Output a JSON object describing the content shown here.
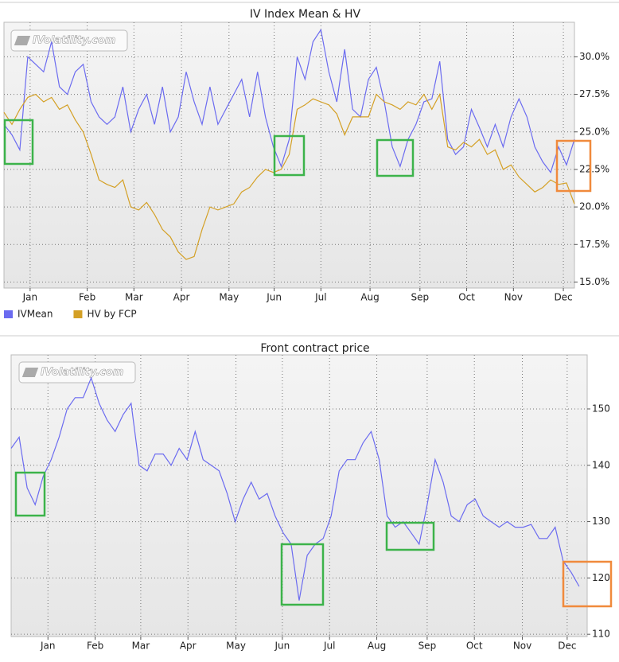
{
  "chart_data": [
    {
      "type": "line",
      "title": "IV Index Mean & HV",
      "watermark": "IVolatility.com",
      "x": [
        0,
        1,
        2,
        3,
        4,
        5,
        6,
        7,
        8,
        9,
        10,
        11,
        12,
        13,
        14,
        15,
        16,
        17,
        18,
        19,
        20,
        21,
        22,
        23,
        24,
        25,
        26,
        27,
        28,
        29,
        30,
        31,
        32,
        33,
        34,
        35,
        36,
        37,
        38,
        39,
        40,
        41,
        42,
        43,
        44,
        45,
        46,
        47,
        48,
        49,
        50,
        51,
        52,
        53,
        54,
        55,
        56,
        57,
        58,
        59,
        60,
        61,
        62,
        63,
        64,
        65,
        66,
        67,
        68,
        69,
        70,
        71,
        72
      ],
      "xlim": [
        0,
        72
      ],
      "xticks": [
        {
          "value": 3.3,
          "label": "Jan"
        },
        {
          "value": 10.5,
          "label": "Feb"
        },
        {
          "value": 16.4,
          "label": "Mar"
        },
        {
          "value": 22.4,
          "label": "Apr"
        },
        {
          "value": 28.4,
          "label": "May"
        },
        {
          "value": 34.1,
          "label": "Jun"
        },
        {
          "value": 40,
          "label": "Jul"
        },
        {
          "value": 46.2,
          "label": "Aug"
        },
        {
          "value": 52.5,
          "label": "Sep"
        },
        {
          "value": 58.4,
          "label": "Oct"
        },
        {
          "value": 64.3,
          "label": "Nov"
        },
        {
          "value": 70.6,
          "label": "Dec"
        }
      ],
      "ylim": [
        14.6,
        32.3
      ],
      "yticks": [
        {
          "value": 15,
          "label": "15.0%"
        },
        {
          "value": 17.5,
          "label": "17.5%"
        },
        {
          "value": 20,
          "label": "20.0%"
        },
        {
          "value": 22.5,
          "label": "22.5%"
        },
        {
          "value": 25,
          "label": "25.0%"
        },
        {
          "value": 27.5,
          "label": "27.5%"
        },
        {
          "value": 30,
          "label": "30.0%"
        }
      ],
      "grid": true,
      "legend": "bottom-left",
      "series": [
        {
          "name": "IVMean",
          "color": "#6b6bf0",
          "values": [
            25.5,
            24.8,
            23.8,
            30,
            29.5,
            29,
            31,
            28,
            27.5,
            29,
            29.5,
            27,
            26,
            25.5,
            26,
            28,
            25,
            26.5,
            27.5,
            25.5,
            28,
            25,
            26,
            29,
            27,
            25.5,
            28,
            25.5,
            26.5,
            27.5,
            28.5,
            26,
            29,
            26,
            24,
            22.7,
            24.5,
            30,
            28.5,
            31,
            31.8,
            29,
            27,
            30.5,
            26.5,
            26,
            28.5,
            29.3,
            27,
            24,
            22.7,
            24.5,
            25.5,
            27,
            27.2,
            29.7,
            24.5,
            23.5,
            24,
            26.5,
            25.3,
            24,
            25.5,
            24,
            26,
            27.2,
            26,
            24,
            23,
            22.3,
            24,
            22.8,
            24.5
          ]
        },
        {
          "name": "HV by FCP",
          "color": "#d4a025",
          "values": [
            26.3,
            25.5,
            26.5,
            27.3,
            27.5,
            27,
            27.3,
            26.5,
            26.8,
            25.8,
            25,
            23.5,
            21.8,
            21.5,
            21.3,
            21.8,
            20,
            19.8,
            20.3,
            19.5,
            18.5,
            18,
            17,
            16.5,
            16.7,
            18.5,
            20,
            19.8,
            20,
            20.2,
            21,
            21.3,
            22,
            22.5,
            22.3,
            22.5,
            23.5,
            26.5,
            26.8,
            27.2,
            27,
            26.8,
            26.2,
            24.8,
            26,
            26,
            26,
            27.5,
            27,
            26.8,
            26.5,
            27,
            26.8,
            27.5,
            26.5,
            27.5,
            24,
            23.8,
            24.3,
            24,
            24.5,
            23.5,
            23.8,
            22.5,
            22.8,
            22,
            21.5,
            21,
            21.3,
            21.8,
            21.5,
            21.6,
            20.2
          ]
        }
      ]
    },
    {
      "type": "line",
      "title": "Front contract price",
      "watermark": "IVolatility.com",
      "x": [
        0,
        1,
        2,
        3,
        4,
        5,
        6,
        7,
        8,
        9,
        10,
        11,
        12,
        13,
        14,
        15,
        16,
        17,
        18,
        19,
        20,
        21,
        22,
        23,
        24,
        25,
        26,
        27,
        28,
        29,
        30,
        31,
        32,
        33,
        34,
        35,
        36,
        37,
        38,
        39,
        40,
        41,
        42,
        43,
        44,
        45,
        46,
        47,
        48,
        49,
        50,
        51,
        52,
        53,
        54,
        55,
        56,
        57,
        58,
        59,
        60,
        61,
        62,
        63,
        64,
        65,
        66,
        67,
        68,
        69,
        70,
        71
      ],
      "xlim": [
        0,
        72
      ],
      "xticks": [
        {
          "value": 4.6,
          "label": "Jan"
        },
        {
          "value": 10.5,
          "label": "Feb"
        },
        {
          "value": 16.2,
          "label": "Mar"
        },
        {
          "value": 22.1,
          "label": "Apr"
        },
        {
          "value": 28.1,
          "label": "May"
        },
        {
          "value": 33.9,
          "label": "Jun"
        },
        {
          "value": 39.8,
          "label": "Jul"
        },
        {
          "value": 45.7,
          "label": "Aug"
        },
        {
          "value": 52,
          "label": "Sep"
        },
        {
          "value": 57.9,
          "label": "Oct"
        },
        {
          "value": 63.9,
          "label": "Nov"
        },
        {
          "value": 69.5,
          "label": "Dec"
        }
      ],
      "ylim": [
        109.6,
        159.6
      ],
      "yticks": [
        110,
        120,
        130,
        140,
        150
      ],
      "grid": true,
      "color": "#6b6bf0",
      "values": [
        143,
        145,
        136,
        133,
        138,
        141,
        145,
        150,
        152,
        152,
        155.5,
        151,
        148,
        146,
        149,
        151,
        140,
        139,
        142,
        142,
        140,
        143,
        141,
        146,
        141,
        140,
        139,
        135,
        130,
        134,
        137,
        134,
        135,
        131,
        128,
        126,
        116,
        124,
        126,
        127,
        131,
        139,
        141,
        141,
        144,
        146,
        141,
        131,
        129,
        130,
        128,
        126,
        133,
        141,
        137,
        131,
        130,
        133,
        134,
        131,
        130,
        129,
        130,
        129,
        129,
        129.5,
        127,
        127,
        129,
        123,
        121,
        118.5
      ]
    }
  ]
}
